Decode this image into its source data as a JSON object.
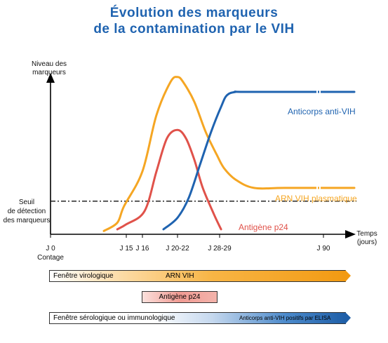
{
  "title_line1": "Évolution des marqueurs",
  "title_line2": "de la contamination par le VIH",
  "colors": {
    "title": "#1f63b0",
    "arn": "#f5a623",
    "p24": "#e0524a",
    "anticorps": "#1f63b0",
    "axis": "#000000"
  },
  "chart_data": {
    "type": "line",
    "ylabel_line1": "Niveau des",
    "ylabel_line2": "marqueurs",
    "xlabel_line1": "Temps",
    "xlabel_line2": "(jours)",
    "threshold": {
      "line1": "Seuil",
      "line2": "de détection",
      "line3": "des marqueurs",
      "level": 0.2
    },
    "x_ticks": [
      {
        "x": 0,
        "label": "J 0",
        "sublabel": "Contage"
      },
      {
        "x": 15,
        "label": "J 15"
      },
      {
        "x": 16,
        "label": "J 16"
      },
      {
        "x": 21,
        "label": "J 20-22"
      },
      {
        "x": 28.5,
        "label": "J 28-29"
      },
      {
        "x": 90,
        "label": "J 90"
      }
    ],
    "series": [
      {
        "name": "ARN VIH plasmatique",
        "color": "#f5a623",
        "points": [
          [
            10,
            0.02
          ],
          [
            13,
            0.07
          ],
          [
            14.5,
            0.17
          ],
          [
            16,
            0.38
          ],
          [
            18,
            0.72
          ],
          [
            20,
            0.92
          ],
          [
            21,
            0.95
          ],
          [
            22,
            0.92
          ],
          [
            24,
            0.8
          ],
          [
            26,
            0.62
          ],
          [
            28,
            0.48
          ],
          [
            30,
            0.4
          ],
          [
            34,
            0.33
          ],
          [
            45,
            0.28
          ],
          [
            65,
            0.28
          ],
          [
            92,
            0.28
          ]
        ]
      },
      {
        "name": "Antigène p24",
        "color": "#e0524a",
        "points": [
          [
            13,
            0.03
          ],
          [
            15,
            0.06
          ],
          [
            16.3,
            0.14
          ],
          [
            18,
            0.38
          ],
          [
            19.5,
            0.58
          ],
          [
            21,
            0.63
          ],
          [
            22.5,
            0.58
          ],
          [
            24,
            0.45
          ],
          [
            25.5,
            0.28
          ],
          [
            27.5,
            0.12
          ],
          [
            29,
            0.03
          ]
        ]
      },
      {
        "name": "Anticorps anti-VIH",
        "color": "#1f63b0",
        "points": [
          [
            19,
            0.03
          ],
          [
            21,
            0.1
          ],
          [
            23,
            0.22
          ],
          [
            25,
            0.42
          ],
          [
            27,
            0.62
          ],
          [
            29,
            0.77
          ],
          [
            31,
            0.84
          ],
          [
            34,
            0.86
          ],
          [
            40,
            0.86
          ],
          [
            92,
            0.86
          ]
        ]
      }
    ],
    "series_labels": {
      "anticorps": "Anticorps anti-VIH",
      "arn": "ARN VIH plasmatique",
      "p24": "Antigène p24"
    }
  },
  "windows": {
    "virologique_label": "Fenêtre virologique",
    "arn_label": "ARN VIH",
    "p24_label": "Antigène p24",
    "serologique_label": "Fenêtre sérologique ou immunologique",
    "elisa_label": "Anticorps anti-VIH positifs par ELISA"
  }
}
